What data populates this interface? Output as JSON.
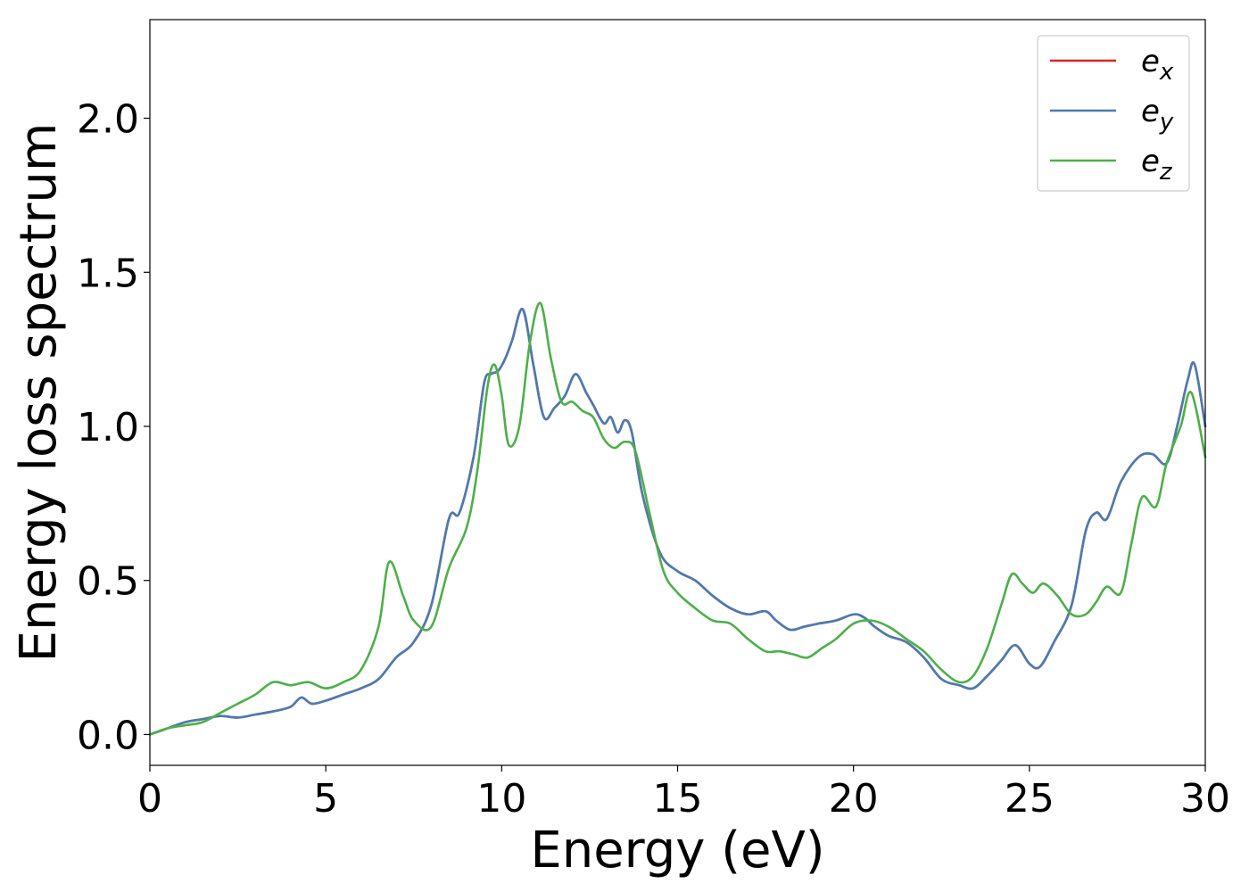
{
  "chart_data": {
    "type": "line",
    "title": "",
    "xlabel": "Energy (eV)",
    "ylabel": "Energy loss spectrum",
    "xlim": [
      0,
      30
    ],
    "ylim": [
      -0.1,
      2.32
    ],
    "xticks": [
      0,
      5,
      10,
      15,
      20,
      25,
      30
    ],
    "xtick_labels": [
      "0",
      "5",
      "10",
      "15",
      "20",
      "25",
      "30"
    ],
    "yticks": [
      0.0,
      0.5,
      1.0,
      1.5,
      2.0
    ],
    "ytick_labels": [
      "0.0",
      "0.5",
      "1.0",
      "1.5",
      "2.0"
    ],
    "grid": false,
    "legend_position": "top-right",
    "series": [
      {
        "name": "e_x",
        "base": "e",
        "sub": "x",
        "color": "#d62728",
        "x": [
          0,
          0.5,
          1,
          1.5,
          2,
          2.5,
          3,
          3.5,
          4,
          4.3,
          4.6,
          5,
          5.5,
          6,
          6.5,
          7,
          7.5,
          8,
          8.5,
          8.8,
          9.2,
          9.5,
          9.7,
          9.9,
          10.1,
          10.3,
          10.6,
          10.9,
          11.2,
          11.5,
          11.8,
          12.1,
          12.4,
          12.6,
          12.9,
          13.1,
          13.3,
          13.5,
          13.7,
          14,
          14.5,
          15,
          15.5,
          16,
          16.5,
          17,
          17.5,
          17.8,
          18.2,
          18.6,
          19,
          19.5,
          20,
          20.3,
          20.6,
          21,
          21.5,
          22,
          22.5,
          23,
          23.4,
          23.8,
          24.2,
          24.6,
          25,
          25.3,
          25.7,
          26.2,
          26.6,
          26.9,
          27.2,
          27.6,
          28.1,
          28.5,
          28.9,
          29.2,
          29.5,
          29.7,
          30
        ],
        "values": [
          0,
          0.02,
          0.04,
          0.05,
          0.06,
          0.055,
          0.065,
          0.075,
          0.09,
          0.12,
          0.1,
          0.11,
          0.13,
          0.15,
          0.18,
          0.25,
          0.3,
          0.42,
          0.7,
          0.72,
          0.9,
          1.14,
          1.17,
          1.18,
          1.22,
          1.28,
          1.38,
          1.2,
          1.03,
          1.06,
          1.1,
          1.17,
          1.11,
          1.07,
          1.01,
          1.03,
          0.98,
          1.02,
          0.98,
          0.78,
          0.59,
          0.53,
          0.5,
          0.45,
          0.41,
          0.39,
          0.4,
          0.37,
          0.34,
          0.35,
          0.36,
          0.37,
          0.39,
          0.38,
          0.35,
          0.32,
          0.3,
          0.25,
          0.18,
          0.16,
          0.15,
          0.19,
          0.24,
          0.29,
          0.23,
          0.22,
          0.3,
          0.42,
          0.66,
          0.72,
          0.7,
          0.82,
          0.9,
          0.91,
          0.88,
          1.0,
          1.15,
          1.2,
          1.0
        ]
      },
      {
        "name": "e_y",
        "base": "e",
        "sub": "y",
        "color": "#4a7cb0",
        "x": [
          0,
          0.5,
          1,
          1.5,
          2,
          2.5,
          3,
          3.5,
          4,
          4.3,
          4.6,
          5,
          5.5,
          6,
          6.5,
          7,
          7.5,
          8,
          8.5,
          8.8,
          9.2,
          9.5,
          9.7,
          9.9,
          10.1,
          10.3,
          10.6,
          10.9,
          11.2,
          11.5,
          11.8,
          12.1,
          12.4,
          12.6,
          12.9,
          13.1,
          13.3,
          13.5,
          13.7,
          14,
          14.5,
          15,
          15.5,
          16,
          16.5,
          17,
          17.5,
          17.8,
          18.2,
          18.6,
          19,
          19.5,
          20,
          20.3,
          20.6,
          21,
          21.5,
          22,
          22.5,
          23,
          23.4,
          23.8,
          24.2,
          24.6,
          25,
          25.3,
          25.7,
          26.2,
          26.6,
          26.9,
          27.2,
          27.6,
          28.1,
          28.5,
          28.9,
          29.2,
          29.5,
          29.7,
          30
        ],
        "values": [
          0,
          0.02,
          0.04,
          0.05,
          0.06,
          0.055,
          0.065,
          0.075,
          0.09,
          0.12,
          0.1,
          0.11,
          0.13,
          0.15,
          0.18,
          0.25,
          0.3,
          0.42,
          0.7,
          0.72,
          0.9,
          1.14,
          1.17,
          1.18,
          1.22,
          1.28,
          1.38,
          1.2,
          1.03,
          1.06,
          1.1,
          1.17,
          1.11,
          1.07,
          1.01,
          1.03,
          0.98,
          1.02,
          0.98,
          0.78,
          0.59,
          0.53,
          0.5,
          0.45,
          0.41,
          0.39,
          0.4,
          0.37,
          0.34,
          0.35,
          0.36,
          0.37,
          0.39,
          0.38,
          0.35,
          0.32,
          0.3,
          0.25,
          0.18,
          0.16,
          0.15,
          0.19,
          0.24,
          0.29,
          0.23,
          0.22,
          0.3,
          0.42,
          0.66,
          0.72,
          0.7,
          0.82,
          0.9,
          0.91,
          0.88,
          1.0,
          1.15,
          1.2,
          1.0
        ]
      },
      {
        "name": "e_z",
        "base": "e",
        "sub": "z",
        "color": "#4daf4a",
        "x": [
          0,
          0.5,
          1,
          1.5,
          2,
          2.5,
          3,
          3.5,
          4,
          4.5,
          5,
          5.5,
          6,
          6.5,
          6.8,
          7.2,
          7.5,
          8,
          8.5,
          9,
          9.3,
          9.6,
          9.8,
          10,
          10.2,
          10.5,
          10.8,
          11.1,
          11.4,
          11.7,
          12,
          12.3,
          12.6,
          12.9,
          13.2,
          13.5,
          13.8,
          14.2,
          14.6,
          15,
          15.5,
          16,
          16.5,
          17,
          17.5,
          17.9,
          18.3,
          18.7,
          19.1,
          19.5,
          20,
          20.5,
          21,
          21.5,
          22,
          22.5,
          23,
          23.4,
          23.8,
          24.2,
          24.5,
          24.8,
          25.1,
          25.4,
          25.8,
          26.2,
          26.6,
          26.9,
          27.2,
          27.6,
          27.9,
          28.2,
          28.6,
          28.9,
          29.3,
          29.6,
          30
        ],
        "values": [
          0,
          0.02,
          0.03,
          0.04,
          0.07,
          0.1,
          0.13,
          0.17,
          0.16,
          0.17,
          0.15,
          0.17,
          0.21,
          0.35,
          0.56,
          0.45,
          0.37,
          0.35,
          0.54,
          0.67,
          0.85,
          1.13,
          1.2,
          1.1,
          0.94,
          1.0,
          1.27,
          1.4,
          1.22,
          1.08,
          1.08,
          1.05,
          1.03,
          0.96,
          0.93,
          0.95,
          0.92,
          0.72,
          0.53,
          0.46,
          0.41,
          0.37,
          0.36,
          0.31,
          0.27,
          0.27,
          0.26,
          0.25,
          0.28,
          0.31,
          0.36,
          0.37,
          0.35,
          0.31,
          0.27,
          0.21,
          0.17,
          0.19,
          0.28,
          0.42,
          0.52,
          0.49,
          0.46,
          0.49,
          0.45,
          0.39,
          0.39,
          0.43,
          0.48,
          0.46,
          0.62,
          0.77,
          0.74,
          0.88,
          1.0,
          1.11,
          0.9
        ]
      }
    ]
  }
}
